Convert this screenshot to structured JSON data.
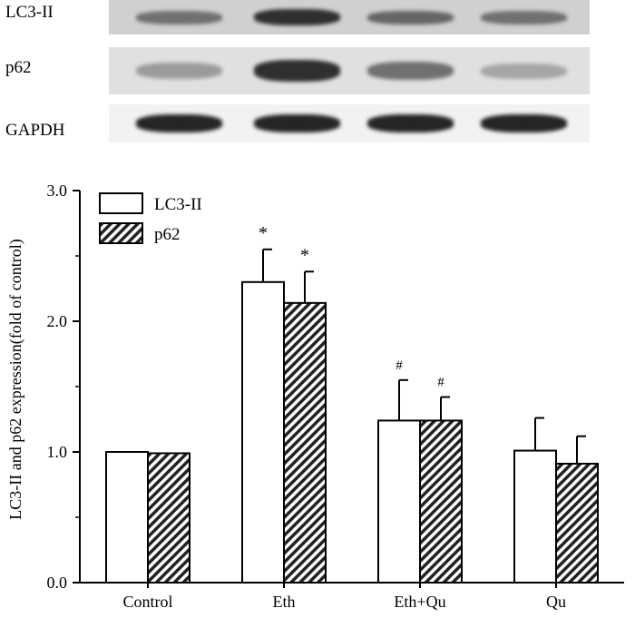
{
  "blot": {
    "rows": [
      {
        "label": "LC3-II",
        "background": "#d0d0d0",
        "band_intensity": [
          0.55,
          0.85,
          0.6,
          0.55
        ]
      },
      {
        "label": "p62",
        "background": "#e0e0e0",
        "band_intensity": [
          0.35,
          0.85,
          0.55,
          0.3
        ]
      },
      {
        "label": "GAPDH",
        "background": "#f2f2f2",
        "band_intensity": [
          0.9,
          0.9,
          0.9,
          0.9
        ]
      }
    ]
  },
  "chart_data": {
    "type": "bar",
    "categories": [
      "Control",
      "Eth",
      "Eth+Qu",
      "Qu"
    ],
    "series": [
      {
        "name": "LC3-II",
        "values": [
          1.0,
          2.3,
          1.24,
          1.01
        ],
        "errors": [
          0.0,
          0.25,
          0.31,
          0.25
        ],
        "fill": "#ffffff"
      },
      {
        "name": "p62",
        "values": [
          0.99,
          2.14,
          1.24,
          0.91
        ],
        "errors": [
          0.0,
          0.24,
          0.18,
          0.21
        ],
        "fill": "hatch"
      }
    ],
    "annotations": [
      {
        "category": "Eth",
        "series": "LC3-II",
        "text": "*"
      },
      {
        "category": "Eth",
        "series": "p62",
        "text": "*"
      },
      {
        "category": "Eth+Qu",
        "series": "LC3-II",
        "text": "#"
      },
      {
        "category": "Eth+Qu",
        "series": "p62",
        "text": "#"
      }
    ],
    "ylabel": "LC3-II and p62 expression(fold of control)",
    "ylim": [
      0,
      3
    ],
    "yticks": [
      "0.0",
      "1.0",
      "2.0",
      "3.0"
    ],
    "grid": false,
    "legend_position": "top-left"
  }
}
